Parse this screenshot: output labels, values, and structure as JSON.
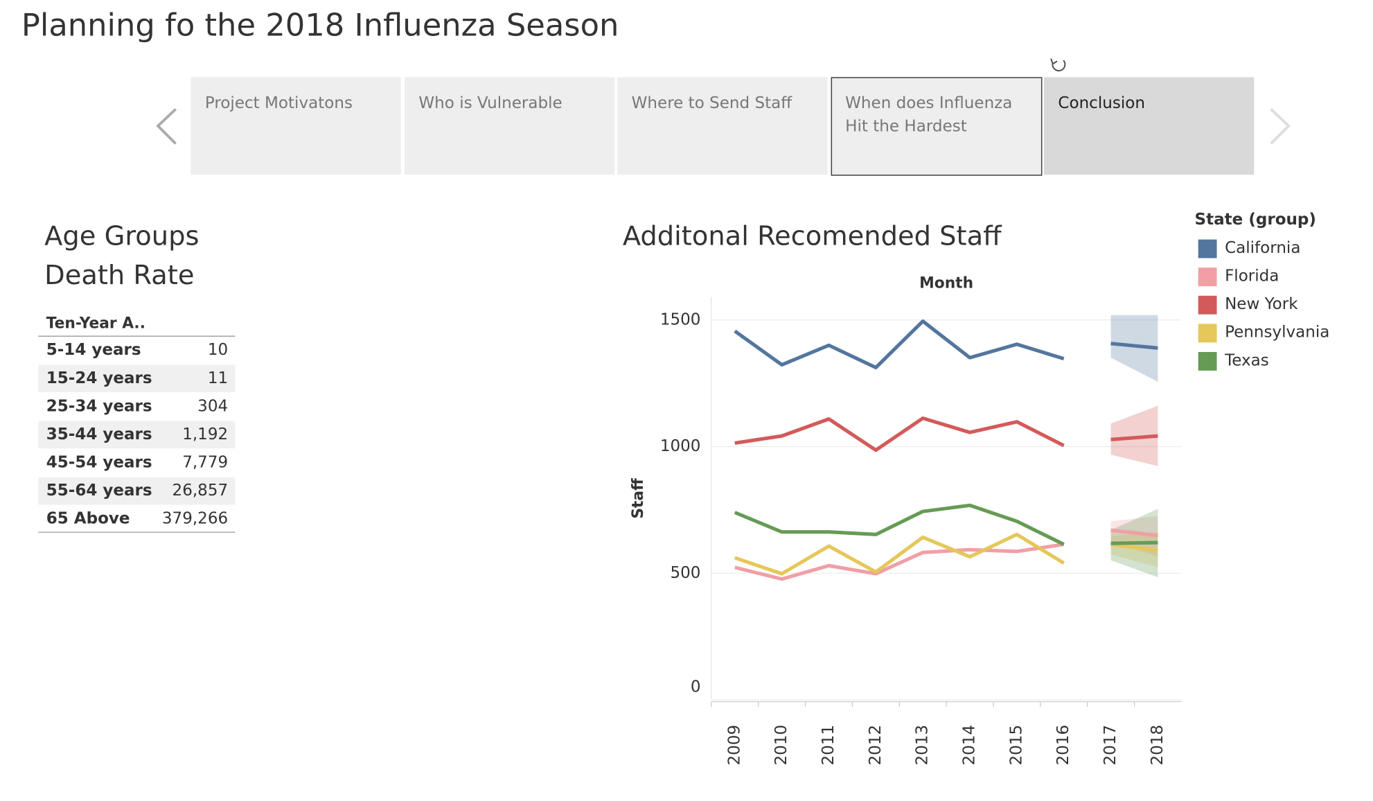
{
  "header": {
    "title": "Planning fo the 2018 Influenza Season"
  },
  "tabs": [
    "Project Motivatons",
    "Who is Vulnerable",
    "Where to Send Staff",
    "When does Influenza Hit the Hardest",
    "Conclusion"
  ],
  "table": {
    "title": [
      "Age Groups",
      "Death Rate"
    ],
    "column": "Ten-Year A..",
    "rows": [
      [
        "5-14 years",
        "10"
      ],
      [
        "15-24 years",
        "11"
      ],
      [
        "25-34 years",
        "304"
      ],
      [
        "35-44 years",
        "1,192"
      ],
      [
        "45-54 years",
        "7,779"
      ],
      [
        "55-64 years",
        "26,857"
      ],
      [
        "65 Above",
        "379,266"
      ]
    ]
  },
  "chart_data": {
    "type": "line",
    "title": "Additonal Recomended Staff",
    "x_label": "Month",
    "y_label": "Staff",
    "legend_title": "State (group)",
    "categories": [
      "2009",
      "2010",
      "2011",
      "2012",
      "2013",
      "2014",
      "2015",
      "2016",
      "2017",
      "2018"
    ],
    "ylim": [
      0,
      1590
    ],
    "yticks": [
      0,
      500,
      1000,
      1500
    ],
    "grid": true,
    "series": [
      {
        "name": "California",
        "color": "#53769e",
        "values": [
          1456,
          1323,
          1400,
          1312,
          1495,
          1351,
          1404,
          1347,
          null,
          null
        ],
        "forecast_values": [
          null,
          null,
          null,
          null,
          null,
          null,
          null,
          null,
          1407,
          1389
        ],
        "band_lower": [
          null,
          null,
          null,
          null,
          null,
          null,
          null,
          null,
          1351,
          1256
        ],
        "band_upper": [
          null,
          null,
          null,
          null,
          null,
          null,
          null,
          null,
          1519,
          1519
        ]
      },
      {
        "name": "Florida",
        "color": "#f09fa5",
        "values": [
          523,
          477,
          530,
          498,
          582,
          593,
          586,
          614,
          null,
          null
        ],
        "forecast_values": [
          null,
          null,
          null,
          null,
          null,
          null,
          null,
          null,
          670,
          649
        ],
        "band_lower": [
          null,
          null,
          null,
          null,
          null,
          null,
          null,
          null,
          628,
          565
        ],
        "band_upper": [
          null,
          null,
          null,
          null,
          null,
          null,
          null,
          null,
          705,
          726
        ]
      },
      {
        "name": "New York",
        "color": "#d35a5a",
        "values": [
          1014,
          1042,
          1109,
          986,
          1112,
          1056,
          1098,
          1004,
          null,
          null
        ],
        "forecast_values": [
          null,
          null,
          null,
          null,
          null,
          null,
          null,
          null,
          1028,
          1042
        ],
        "band_lower": [
          null,
          null,
          null,
          null,
          null,
          null,
          null,
          null,
          968,
          923
        ],
        "band_upper": [
          null,
          null,
          null,
          null,
          null,
          null,
          null,
          null,
          1091,
          1161
        ]
      },
      {
        "name": "Pennsylvania",
        "color": "#e5c75a",
        "values": [
          561,
          498,
          607,
          505,
          642,
          565,
          653,
          540,
          null,
          null
        ],
        "forecast_values": [
          null,
          null,
          null,
          null,
          null,
          null,
          null,
          null,
          614,
          589
        ],
        "band_lower": [
          null,
          null,
          null,
          null,
          null,
          null,
          null,
          null,
          575,
          523
        ],
        "band_upper": [
          null,
          null,
          null,
          null,
          null,
          null,
          null,
          null,
          646,
          663
        ]
      },
      {
        "name": "Texas",
        "color": "#669b56",
        "values": [
          740,
          663,
          663,
          653,
          744,
          768,
          705,
          614,
          null,
          null
        ],
        "forecast_values": [
          null,
          null,
          null,
          null,
          null,
          null,
          null,
          null,
          618,
          621
        ],
        "band_lower": [
          null,
          null,
          null,
          null,
          null,
          null,
          null,
          null,
          551,
          484
        ],
        "band_upper": [
          null,
          null,
          null,
          null,
          null,
          null,
          null,
          null,
          670,
          754
        ]
      }
    ]
  }
}
